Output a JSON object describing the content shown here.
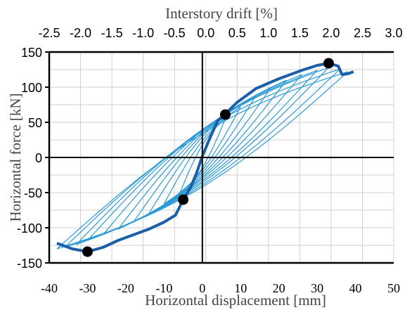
{
  "chart_data": {
    "type": "line",
    "title": "",
    "xlabel": "Horizontal displacement [mm]",
    "ylabel": "Horizontal force [kN]",
    "x2label": "Interstory drift [%]",
    "xlim": [
      -40,
      50
    ],
    "ylim": [
      -150,
      150
    ],
    "x2lim": [
      -2.5,
      3.0
    ],
    "xticks": [
      "-40",
      "-30",
      "-20",
      "-10",
      "0",
      "10",
      "20",
      "30",
      "40",
      "50"
    ],
    "yticks": [
      "150",
      "100",
      "50",
      "0",
      "-50",
      "-100",
      "-150"
    ],
    "x2ticks": [
      "-2.5",
      "-2.0",
      "-1.5",
      "-1.0",
      "-0.5",
      "0.0",
      "0.5",
      "1.0",
      "1.5",
      "2.0",
      "2.5",
      "3.0"
    ],
    "grid": true,
    "colors": {
      "cycles": "#2b9ad6",
      "envelope": "#1a5fa8",
      "marker": "#000000",
      "axis": "#000000",
      "grid": "#d0d0d0"
    },
    "series": [
      {
        "role": "cyclic-loops",
        "loops": [
          {
            "amp": 6,
            "fpos": 55,
            "fneg": -52
          },
          {
            "amp": 10,
            "fpos": 72,
            "fneg": -66
          },
          {
            "amp": 14,
            "fpos": 88,
            "fneg": -80
          },
          {
            "amp": 18,
            "fpos": 100,
            "fneg": -92
          },
          {
            "amp": 22,
            "fpos": 110,
            "fneg": -102
          },
          {
            "amp": 26,
            "fpos": 118,
            "fneg": -110
          },
          {
            "amp": 30,
            "fpos": 124,
            "fneg": -118
          },
          {
            "amp": 33,
            "fpos": 128,
            "fneg": -124
          },
          {
            "amp": 36,
            "fpos": 126,
            "fneg": -128
          },
          {
            "amp": 38,
            "fpos": 122,
            "fneg": -130
          }
        ]
      },
      {
        "role": "envelope",
        "x": [
          -38,
          -34,
          -30,
          -26,
          -22,
          -18,
          -14,
          -10,
          -7,
          -5,
          -3,
          -1.5,
          0,
          2,
          4,
          6,
          9,
          14,
          20,
          26,
          30,
          33,
          35.5,
          36.5,
          38,
          39.5
        ],
        "y": [
          -122,
          -130,
          -134,
          -128,
          -118,
          -110,
          -102,
          -92,
          -82,
          -60,
          -42,
          -22,
          2,
          28,
          52,
          62,
          78,
          98,
          112,
          124,
          131,
          134,
          130,
          118,
          119,
          122
        ]
      }
    ],
    "markers": [
      {
        "x": -30,
        "y": -134
      },
      {
        "x": -5,
        "y": -60
      },
      {
        "x": 6,
        "y": 61
      },
      {
        "x": 33,
        "y": 134
      }
    ]
  }
}
